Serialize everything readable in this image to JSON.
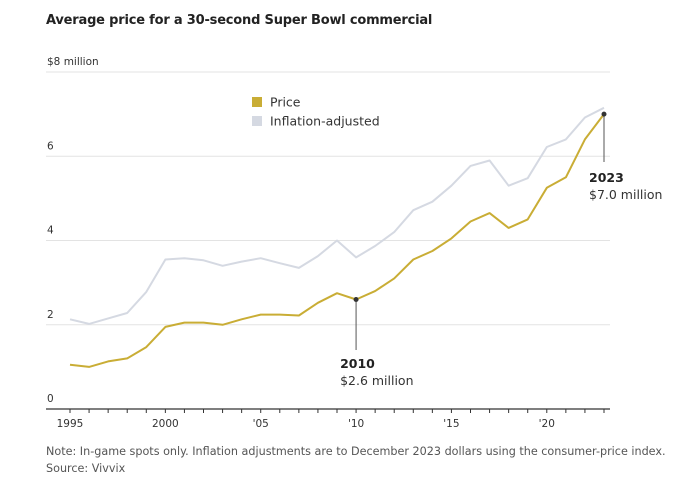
{
  "chart_data": {
    "type": "line",
    "title": "Average price for a 30-second Super Bowl commercial",
    "xlabel": "",
    "ylabel": "",
    "y_unit_label": "$8 million",
    "ylim": [
      0,
      8
    ],
    "xlim": [
      1995,
      2023
    ],
    "y_ticks": [
      {
        "value": 0,
        "label": "0"
      },
      {
        "value": 2,
        "label": "2"
      },
      {
        "value": 4,
        "label": "4"
      },
      {
        "value": 6,
        "label": "6"
      },
      {
        "value": 8,
        "label": "$8 million"
      }
    ],
    "x_ticks": [
      {
        "value": 1995,
        "label": "1995"
      },
      {
        "value": 2000,
        "label": "2000"
      },
      {
        "value": 2005,
        "label": "'05"
      },
      {
        "value": 2010,
        "label": "'10"
      },
      {
        "value": 2015,
        "label": "'15"
      },
      {
        "value": 2020,
        "label": "'20"
      }
    ],
    "grid": true,
    "legend_position": "top-center",
    "x": [
      1995,
      1996,
      1997,
      1998,
      1999,
      2000,
      2001,
      2002,
      2003,
      2004,
      2005,
      2006,
      2007,
      2008,
      2009,
      2010,
      2011,
      2012,
      2013,
      2014,
      2015,
      2016,
      2017,
      2018,
      2019,
      2020,
      2021,
      2022,
      2023
    ],
    "series": [
      {
        "name": "Price",
        "color": "#c9ad35",
        "values": [
          1.05,
          1.0,
          1.13,
          1.2,
          1.47,
          1.95,
          2.05,
          2.05,
          2.0,
          2.13,
          2.24,
          2.24,
          2.22,
          2.52,
          2.75,
          2.6,
          2.8,
          3.1,
          3.55,
          3.75,
          4.05,
          4.45,
          4.65,
          4.3,
          4.5,
          5.25,
          5.5,
          6.4,
          7.0
        ]
      },
      {
        "name": "Inflation-adjusted",
        "color": "#d5d9e2",
        "values": [
          2.13,
          2.02,
          2.15,
          2.28,
          2.78,
          3.55,
          3.58,
          3.53,
          3.4,
          3.5,
          3.58,
          3.46,
          3.35,
          3.63,
          4.0,
          3.6,
          3.87,
          4.2,
          4.72,
          4.92,
          5.3,
          5.77,
          5.9,
          5.3,
          5.48,
          6.22,
          6.4,
          6.92,
          7.15
        ]
      }
    ],
    "annotations": [
      {
        "series": "Price",
        "x": 2010,
        "value": 2.6,
        "year_label": "2010",
        "value_label": "$2.6 million",
        "placement": "below"
      },
      {
        "series": "Price",
        "x": 2023,
        "value": 7.0,
        "year_label": "2023",
        "value_label": "$7.0 million",
        "placement": "below-right"
      }
    ]
  },
  "footer": {
    "note": "Note: In-game spots only. Inflation adjustments are to December 2023 dollars using the consumer-price index.",
    "source": "Source: Vivvix"
  }
}
